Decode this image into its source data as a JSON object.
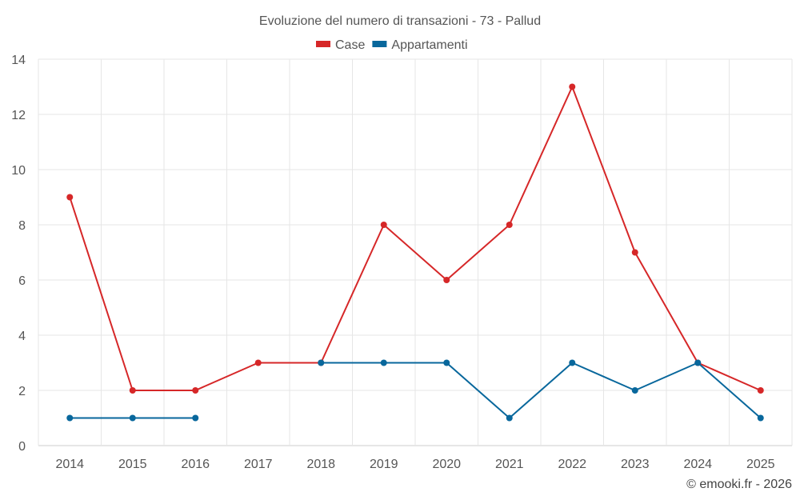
{
  "chart_data": {
    "type": "line",
    "title": "Evoluzione del numero di transazioni - 73 - Pallud",
    "categories": [
      "2014",
      "2015",
      "2016",
      "2017",
      "2018",
      "2019",
      "2020",
      "2021",
      "2022",
      "2023",
      "2024",
      "2025"
    ],
    "series": [
      {
        "name": "Case",
        "color": "#d62728",
        "values": [
          9,
          2,
          2,
          3,
          3,
          8,
          6,
          8,
          13,
          7,
          3,
          2
        ]
      },
      {
        "name": "Appartamenti",
        "color": "#08679c",
        "values": [
          1,
          1,
          1,
          null,
          3,
          3,
          3,
          1,
          3,
          2,
          3,
          1
        ]
      }
    ],
    "ylim": [
      0,
      14
    ],
    "yticks": [
      0,
      2,
      4,
      6,
      8,
      10,
      12,
      14
    ],
    "grid": true,
    "legend": "top-center",
    "credit": "© emooki.fr - 2026"
  }
}
